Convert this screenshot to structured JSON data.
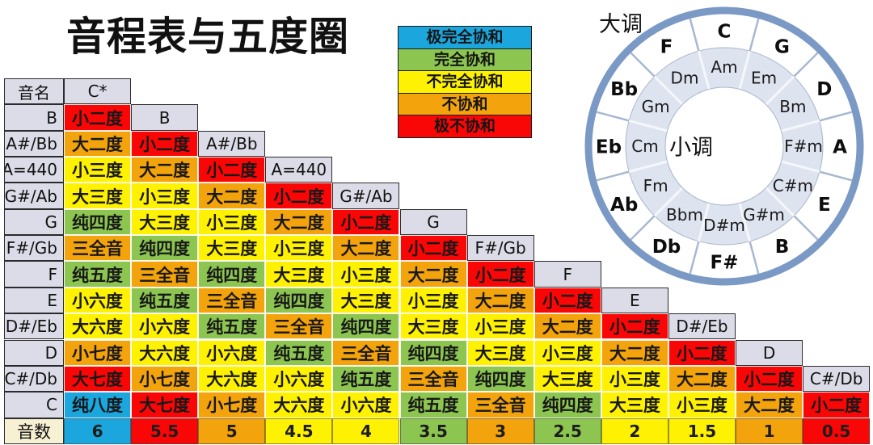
{
  "page": {
    "title": "音程表与五度圈"
  },
  "colors": {
    "blue": "#1ba6de",
    "green": "#8cc550",
    "yellow": "#fef102",
    "orange": "#f3a30b",
    "red": "#f90606",
    "header_gray": "#dcdce8",
    "tone_header_beige": "#f8f0d3",
    "ring_blue": "#7a99c5",
    "inner_ring_fill": "#dee3f0",
    "outer_divider": "#a8b8d2",
    "inner_divider": "#f5f7fb",
    "ring_outline": "#aab6cc"
  },
  "legend": {
    "items": [
      {
        "label": "极完全协和",
        "color": "blue"
      },
      {
        "label": "完全协和",
        "color": "green"
      },
      {
        "label": "不完全协和",
        "color": "yellow"
      },
      {
        "label": "不协和",
        "color": "orange"
      },
      {
        "label": "极不协和",
        "color": "red"
      }
    ]
  },
  "interval_colors": {
    "小二度": "red",
    "大二度": "orange",
    "小三度": "yellow",
    "大三度": "yellow",
    "纯四度": "green",
    "三全音": "orange",
    "纯五度": "green",
    "小六度": "yellow",
    "大六度": "yellow",
    "小七度": "orange",
    "大七度": "red",
    "纯八度": "blue"
  },
  "table": {
    "corner_label": "音名",
    "first_col_header": "C*",
    "rows": [
      {
        "note": "B",
        "intervals": [
          "小二度"
        ]
      },
      {
        "note": "A#/Bb",
        "intervals": [
          "大二度",
          "小二度"
        ]
      },
      {
        "note": "A=440",
        "intervals": [
          "小三度",
          "大二度",
          "小二度"
        ]
      },
      {
        "note": "G#/Ab",
        "intervals": [
          "大三度",
          "小三度",
          "大二度",
          "小二度"
        ]
      },
      {
        "note": "G",
        "intervals": [
          "纯四度",
          "大三度",
          "小三度",
          "大二度",
          "小二度"
        ]
      },
      {
        "note": "F#/Gb",
        "intervals": [
          "三全音",
          "纯四度",
          "大三度",
          "小三度",
          "大二度",
          "小二度"
        ]
      },
      {
        "note": "F",
        "intervals": [
          "纯五度",
          "三全音",
          "纯四度",
          "大三度",
          "小三度",
          "大二度",
          "小二度"
        ]
      },
      {
        "note": "E",
        "intervals": [
          "小六度",
          "纯五度",
          "三全音",
          "纯四度",
          "大三度",
          "小三度",
          "大二度",
          "小二度"
        ]
      },
      {
        "note": "D#/Eb",
        "intervals": [
          "大六度",
          "小六度",
          "纯五度",
          "三全音",
          "纯四度",
          "大三度",
          "小三度",
          "大二度",
          "小二度"
        ]
      },
      {
        "note": "D",
        "intervals": [
          "小七度",
          "大六度",
          "小六度",
          "纯五度",
          "三全音",
          "纯四度",
          "大三度",
          "小三度",
          "大二度",
          "小二度"
        ]
      },
      {
        "note": "C#/Db",
        "intervals": [
          "大七度",
          "小七度",
          "大六度",
          "小六度",
          "纯五度",
          "三全音",
          "纯四度",
          "大三度",
          "小三度",
          "大二度",
          "小二度"
        ]
      },
      {
        "note": "C",
        "intervals": [
          "纯八度",
          "大七度",
          "小七度",
          "大六度",
          "小六度",
          "纯五度",
          "三全音",
          "纯四度",
          "大三度",
          "小三度",
          "大二度",
          "小二度"
        ]
      }
    ],
    "tone_count_label": "音数",
    "tone_counts": [
      {
        "value": "6",
        "color": "blue"
      },
      {
        "value": "5.5",
        "color": "red"
      },
      {
        "value": "5",
        "color": "orange"
      },
      {
        "value": "4.5",
        "color": "yellow"
      },
      {
        "value": "4",
        "color": "yellow"
      },
      {
        "value": "3.5",
        "color": "green"
      },
      {
        "value": "3",
        "color": "orange"
      },
      {
        "value": "2.5",
        "color": "green"
      },
      {
        "value": "2",
        "color": "yellow"
      },
      {
        "value": "1.5",
        "color": "yellow"
      },
      {
        "value": "1",
        "color": "orange"
      },
      {
        "value": "0.5",
        "color": "red"
      }
    ]
  },
  "circle": {
    "major_label": "大调",
    "minor_label": "小调",
    "major_keys": [
      "C",
      "G",
      "D",
      "A",
      "E",
      "B",
      "F#",
      "Db",
      "Ab",
      "Eb",
      "Bb",
      "F"
    ],
    "minor_keys": [
      "Am",
      "Em",
      "Bm",
      "F#m",
      "C#m",
      "G#m",
      "D#m",
      "Bbm",
      "Fm",
      "Cm",
      "Gm",
      "Dm"
    ]
  }
}
